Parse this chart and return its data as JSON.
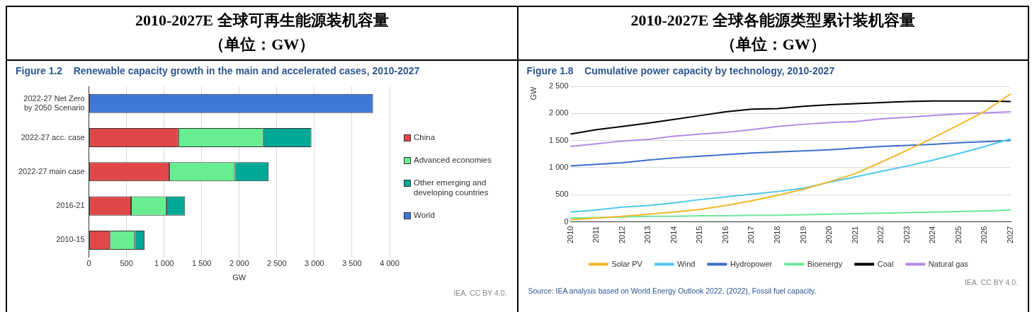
{
  "chart_data": [
    {
      "type": "bar",
      "orientation": "horizontal",
      "stacked": true,
      "title": "2010-2027E 全球可再生能源装机容量",
      "subtitle": "（单位：GW）",
      "annotations": [
        "Figure 1.2    Renewable capacity growth in the main and accelerated cases, 2010-2027",
        "IEA. CC BY 4.0."
      ],
      "xlabel": "GW",
      "categories": [
        "2022-27 Net Zero by 2050 Scenario",
        "2022-27 acc. case",
        "2022-27 main case",
        "2016-21",
        "2010-15"
      ],
      "series": [
        {
          "name": "China",
          "color": "#e04848",
          "values": [
            null,
            1190,
            1070,
            560,
            280
          ]
        },
        {
          "name": "Advanced economies",
          "color": "#66ee90",
          "values": [
            null,
            1130,
            870,
            470,
            330
          ]
        },
        {
          "name": "Other emerging and developing countries",
          "color": "#00a896",
          "values": [
            null,
            640,
            450,
            250,
            130
          ]
        },
        {
          "name": "World",
          "color": "#3c78d8",
          "values": [
            3780,
            null,
            null,
            null,
            null
          ]
        }
      ],
      "xlim": [
        0,
        4000
      ],
      "xticks": [
        0,
        500,
        {
          "value": 1000,
          "label": "1 000"
        },
        {
          "value": 1500,
          "label": "1 500"
        },
        {
          "value": 2000,
          "label": "2 000"
        },
        {
          "value": 2500,
          "label": "2 500"
        },
        {
          "value": 3000,
          "label": "3 000"
        },
        {
          "value": 3500,
          "label": "3 500"
        },
        {
          "value": 4000,
          "label": "4 000"
        }
      ],
      "grid": "x",
      "legend": "right"
    },
    {
      "type": "line",
      "title": "2010-2027E 全球各能源类型累计装机容量",
      "subtitle": "（单位：GW）",
      "annotations": [
        "Figure 1.8    Cumulative power capacity by technology, 2010-2027",
        "IEA. CC BY 4.0.",
        "Source: IEA analysis based on World Energy Outlook 2022. (2022), Fossil fuel capacity."
      ],
      "ylabel": "GW",
      "categories": [
        "2010",
        "2011",
        "2012",
        "2013",
        "2014",
        "2015",
        "2016",
        "2017",
        "2018",
        "2019",
        "2020",
        "2021",
        "2022",
        "2023",
        "2024",
        "2025",
        "2026",
        "2027"
      ],
      "series": [
        {
          "name": "Solar PV",
          "color": "#f2b82a",
          "values": [
            40,
            70,
            100,
            140,
            180,
            230,
            300,
            390,
            490,
            600,
            740,
            890,
            1100,
            1320,
            1550,
            1790,
            2040,
            2360
          ]
        },
        {
          "name": "Wind",
          "color": "#4fc8ec",
          "values": [
            180,
            220,
            270,
            300,
            350,
            410,
            460,
            510,
            560,
            620,
            730,
            830,
            930,
            1030,
            1140,
            1260,
            1390,
            1530
          ]
        },
        {
          "name": "Hydropower",
          "color": "#3d6fc9",
          "values": [
            1030,
            1060,
            1090,
            1140,
            1180,
            1210,
            1240,
            1270,
            1290,
            1310,
            1330,
            1360,
            1390,
            1410,
            1430,
            1460,
            1480,
            1500
          ]
        },
        {
          "name": "Bioenergy",
          "color": "#6ee89a",
          "values": [
            70,
            80,
            90,
            100,
            100,
            110,
            110,
            120,
            120,
            130,
            140,
            150,
            160,
            170,
            180,
            190,
            200,
            220
          ]
        },
        {
          "name": "Coal",
          "color": "#000000",
          "values": [
            1620,
            1700,
            1760,
            1820,
            1890,
            1960,
            2030,
            2080,
            2090,
            2130,
            2160,
            2180,
            2200,
            2220,
            2230,
            2230,
            2230,
            2220
          ]
        },
        {
          "name": "Natural gas",
          "color": "#b48ae8",
          "values": [
            1390,
            1440,
            1490,
            1520,
            1580,
            1620,
            1650,
            1700,
            1760,
            1800,
            1830,
            1850,
            1900,
            1930,
            1960,
            1990,
            2010,
            2030
          ]
        }
      ],
      "ylim": [
        0,
        2500
      ],
      "yticks": [
        0,
        500,
        {
          "value": 1000,
          "label": "1 000"
        },
        {
          "value": 1500,
          "label": "1 500"
        },
        {
          "value": 2000,
          "label": "2 000"
        },
        {
          "value": 2500,
          "label": "2 500"
        }
      ],
      "grid": "y",
      "legend": "bottom",
      "marker": "none"
    }
  ]
}
